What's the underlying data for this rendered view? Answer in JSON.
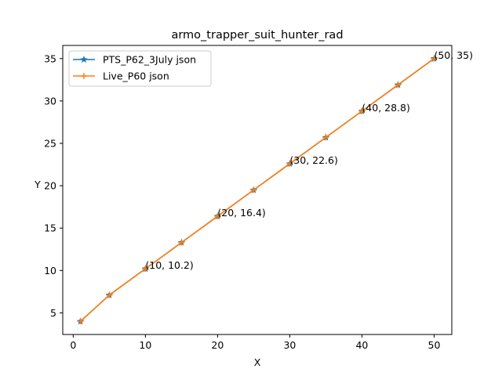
{
  "chart_data": {
    "type": "line",
    "title": "armo_trapper_suit_hunter_rad",
    "xlabel": "X",
    "ylabel": "Y",
    "xlim": [
      -1.45,
      52.45
    ],
    "ylim": [
      2.45,
      36.55
    ],
    "xticks": [
      0,
      10,
      20,
      30,
      40,
      50
    ],
    "yticks": [
      5,
      10,
      15,
      20,
      25,
      30,
      35
    ],
    "grid": false,
    "legend_position": "upper-left",
    "x": [
      1,
      5,
      10,
      15,
      20,
      25,
      30,
      35,
      40,
      45,
      50
    ],
    "series": [
      {
        "name": "PTS_P62_3July json",
        "color": "#1f77b4",
        "marker": "star",
        "values": [
          4.0,
          7.1,
          10.2,
          13.3,
          16.4,
          19.5,
          22.6,
          25.7,
          28.8,
          31.9,
          35.0
        ]
      },
      {
        "name": "Live_P60 json",
        "color": "#ff7f0e",
        "marker": "plus",
        "values": [
          4.0,
          7.1,
          10.2,
          13.3,
          16.4,
          19.5,
          22.6,
          25.7,
          28.8,
          31.9,
          35.0
        ]
      }
    ],
    "annotations": [
      {
        "x": 10,
        "y": 10.2,
        "text": "(10, 10.2)"
      },
      {
        "x": 20,
        "y": 16.4,
        "text": "(20, 16.4)"
      },
      {
        "x": 30,
        "y": 22.6,
        "text": "(30, 22.6)"
      },
      {
        "x": 40,
        "y": 28.8,
        "text": "(40, 28.8)"
      },
      {
        "x": 50,
        "y": 35,
        "text": "(50, 35)"
      }
    ]
  }
}
